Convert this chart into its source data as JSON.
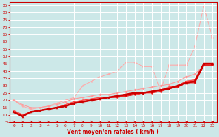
{
  "xlabel": "Vent moyen/en rafales ( km/h )",
  "background_color": "#cce8e8",
  "grid_color": "#ffffff",
  "xlim": [
    -0.5,
    23.5
  ],
  "ylim": [
    5,
    87
  ],
  "yticks": [
    5,
    10,
    15,
    20,
    25,
    30,
    35,
    40,
    45,
    50,
    55,
    60,
    65,
    70,
    75,
    80,
    85
  ],
  "xticks": [
    0,
    1,
    2,
    3,
    4,
    5,
    6,
    7,
    8,
    9,
    10,
    11,
    12,
    13,
    14,
    15,
    16,
    17,
    18,
    19,
    20,
    21,
    22,
    23
  ],
  "x": [
    0,
    1,
    2,
    3,
    4,
    5,
    6,
    7,
    8,
    9,
    10,
    11,
    12,
    13,
    14,
    15,
    16,
    17,
    18,
    19,
    20,
    21,
    22,
    23
  ],
  "lines": [
    {
      "y": [
        20,
        16,
        14,
        15,
        16,
        18,
        20,
        22,
        30,
        33,
        36,
        38,
        40,
        46,
        46,
        43,
        43,
        27,
        44,
        44,
        44,
        57,
        85,
        63
      ],
      "color": "#ffaaaa",
      "lw": 0.8,
      "marker": "D",
      "ms": 2.0,
      "zorder": 1
    },
    {
      "y": [
        20,
        17,
        15,
        15,
        16,
        17,
        19,
        21,
        22,
        23,
        24,
        24,
        25,
        26,
        27,
        28,
        29,
        30,
        31,
        33,
        36,
        38,
        44,
        45
      ],
      "color": "#ff9999",
      "lw": 0.8,
      "marker": "D",
      "ms": 2.0,
      "zorder": 2
    },
    {
      "y": [
        12,
        9,
        12,
        13,
        14,
        15,
        16,
        18,
        19,
        20,
        21,
        22,
        23,
        24,
        25,
        25,
        26,
        27,
        28,
        30,
        32,
        33,
        45,
        45
      ],
      "color": "#cc0000",
      "lw": 1.8,
      "marker": "^",
      "ms": 2.5,
      "zorder": 5
    },
    {
      "y": [
        12,
        9,
        12,
        13,
        14,
        15,
        16,
        18,
        19,
        20,
        21,
        22,
        23,
        23,
        24,
        25,
        26,
        27,
        28,
        30,
        33,
        33,
        44,
        44
      ],
      "color": "#dd1111",
      "lw": 1.2,
      "marker": "s",
      "ms": 1.8,
      "zorder": 4
    },
    {
      "y": [
        12,
        9,
        12,
        13,
        14,
        15,
        16,
        18,
        19,
        20,
        21,
        22,
        22,
        23,
        24,
        25,
        25,
        26,
        28,
        29,
        32,
        32,
        44,
        44
      ],
      "color": "#ee2222",
      "lw": 1.0,
      "marker": "o",
      "ms": 1.8,
      "zorder": 4
    },
    {
      "y": [
        13,
        10,
        12,
        13,
        14,
        15,
        17,
        19,
        20,
        21,
        22,
        22,
        23,
        24,
        24,
        25,
        26,
        27,
        29,
        30,
        33,
        34,
        45,
        45
      ],
      "color": "#ff4444",
      "lw": 1.0,
      "marker": "v",
      "ms": 1.8,
      "zorder": 4
    }
  ],
  "arrow_color": "#cc0000",
  "tick_color": "#cc0000",
  "xlabel_color": "#cc0000",
  "axis_color": "#cc0000",
  "tick_fontsize": 4.2,
  "xlabel_fontsize": 5.5
}
